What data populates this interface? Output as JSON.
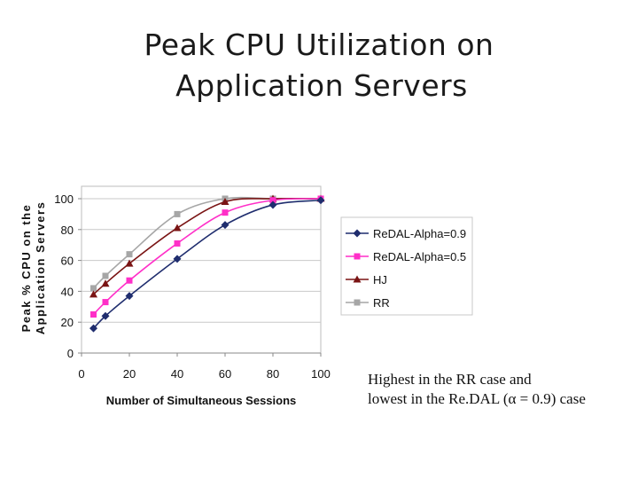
{
  "slide": {
    "title_line1": "Peak CPU Utilization on",
    "title_line2": "Application Servers",
    "caption_line1": "Highest in the RR case and",
    "caption_line2": "lowest in the Re.DAL (α = 0.9) case"
  },
  "chart_data": {
    "type": "line",
    "xlabel": "Number of Simultaneous Sessions",
    "ylabel_line1": "Peak % CPU on the",
    "ylabel_line2": "Application Servers",
    "xlim": [
      0,
      100
    ],
    "ylim": [
      0,
      100
    ],
    "xticks": [
      0,
      20,
      40,
      60,
      80,
      100
    ],
    "yticks": [
      0,
      20,
      40,
      60,
      80,
      100
    ],
    "grid": "horizontal",
    "legend_position": "right",
    "series": [
      {
        "name": "ReDAL-Alpha=0.9",
        "color": "#1f2d6e",
        "marker": "diamond",
        "x": [
          5,
          10,
          20,
          40,
          60,
          80,
          100
        ],
        "y": [
          16,
          24,
          37,
          61,
          83,
          96,
          99
        ]
      },
      {
        "name": "ReDAL-Alpha=0.5",
        "color": "#ff2fc8",
        "marker": "square",
        "x": [
          5,
          10,
          20,
          40,
          60,
          80,
          100
        ],
        "y": [
          25,
          33,
          47,
          71,
          91,
          99,
          100
        ]
      },
      {
        "name": "HJ",
        "color": "#7a1414",
        "marker": "triangle",
        "x": [
          5,
          10,
          20,
          40,
          60,
          80,
          100
        ],
        "y": [
          38,
          45,
          58,
          81,
          98,
          100,
          100
        ]
      },
      {
        "name": "RR",
        "color": "#a6a6a6",
        "marker": "square",
        "x": [
          5,
          10,
          20,
          40,
          60,
          80,
          100
        ],
        "y": [
          42,
          50,
          64,
          90,
          100,
          100,
          100
        ]
      }
    ]
  }
}
